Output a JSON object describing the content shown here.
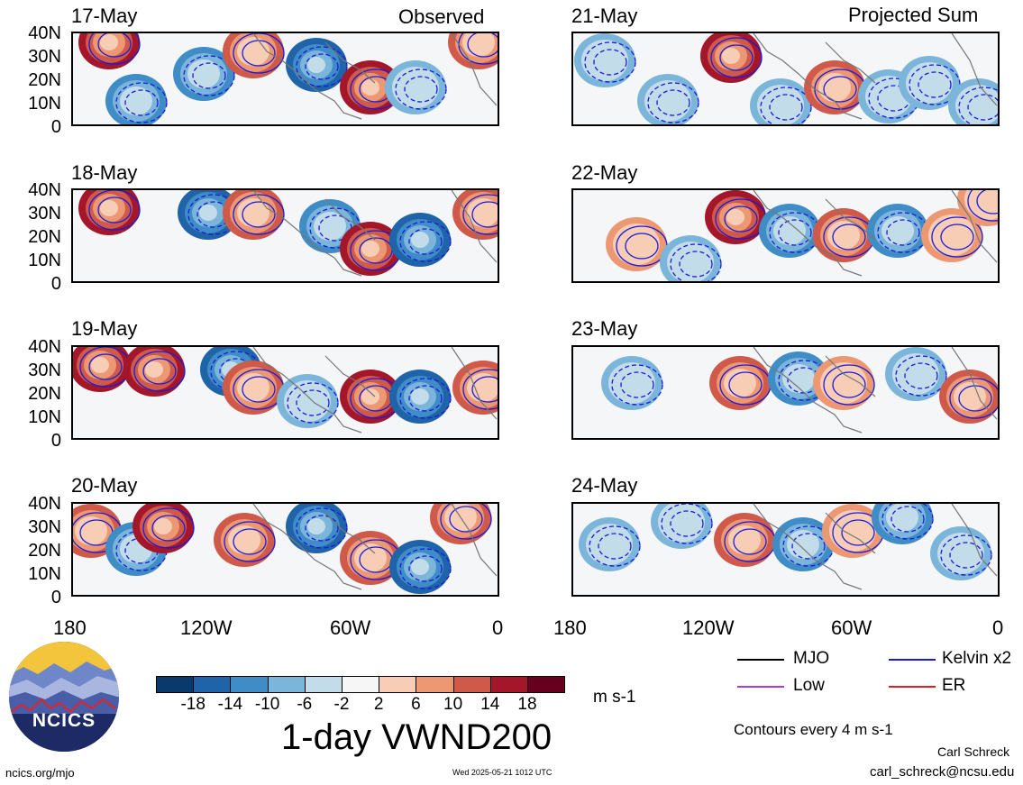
{
  "titles": {
    "left": "Observed",
    "right": "Projected Sum"
  },
  "dates": {
    "left": [
      "17-May",
      "18-May",
      "19-May",
      "20-May"
    ],
    "right": [
      "21-May",
      "22-May",
      "23-May",
      "24-May"
    ]
  },
  "lat_labels": [
    "40N",
    "30N",
    "20N",
    "10N",
    "0"
  ],
  "lon_labels": [
    "180",
    "120W",
    "60W",
    "0"
  ],
  "colorbar": {
    "labels": [
      "-18",
      "-14",
      "-10",
      "-6",
      "-2",
      "2",
      "6",
      "10",
      "14",
      "18"
    ],
    "colors": [
      "#0a3a6b",
      "#1f64a8",
      "#3f8cc6",
      "#7bb6da",
      "#c3dcea",
      "#f6f6f6",
      "#f7cdb6",
      "#ec9873",
      "#cf5a4a",
      "#a4172b",
      "#67001f"
    ],
    "units": "m s-1"
  },
  "main_title": "1-day VWND200",
  "legend": {
    "mjo": "MJO",
    "kelvin": "Kelvin x2",
    "low": "Low",
    "er": "ER",
    "colors": {
      "mjo": "#000000",
      "kelvin": "#1a1adc",
      "low": "#a040e0",
      "er": "#e02020"
    }
  },
  "contour_note": "Contours every 4 m s-1",
  "credits": {
    "author": "Carl Schreck",
    "email": "carl_schreck@ncsu.edu",
    "url": "ncics.org/mjo",
    "timestamp": "Wed 2025-05-21 1012 UTC"
  },
  "logo_text": "NCICS",
  "chart_data": {
    "type": "heatmap",
    "variable": "1-day VWND200",
    "units": "m s-1",
    "contour_interval": "Contours every 4 m s-1",
    "color_levels": [
      -18,
      -14,
      -10,
      -6,
      -2,
      2,
      6,
      10,
      14,
      18
    ],
    "lat_range": [
      0,
      40
    ],
    "lon_range": [
      "180",
      "0"
    ],
    "panels": [
      {
        "date": "17-May",
        "type": "Observed"
      },
      {
        "date": "18-May",
        "type": "Observed"
      },
      {
        "date": "19-May",
        "type": "Observed"
      },
      {
        "date": "20-May",
        "type": "Observed"
      },
      {
        "date": "21-May",
        "type": "Projected Sum"
      },
      {
        "date": "22-May",
        "type": "Projected Sum"
      },
      {
        "date": "23-May",
        "type": "Projected Sum"
      },
      {
        "date": "24-May",
        "type": "Projected Sum"
      }
    ],
    "series": [
      {
        "name": "MJO"
      },
      {
        "name": "Kelvin x2"
      },
      {
        "name": "Low"
      },
      {
        "name": "ER"
      }
    ]
  }
}
